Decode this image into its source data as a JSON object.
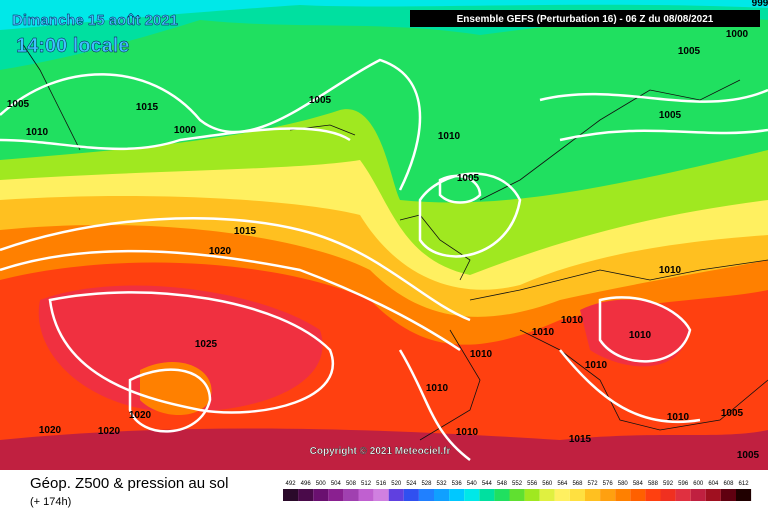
{
  "header": {
    "date": "Dimanche 15 août 2021",
    "time": "14:00 locale",
    "run": "Ensemble GEFS  (Perturbation 16)  -  06 Z du 08/08/2021"
  },
  "isobar_labels": [
    "999",
    "1005",
    "1015",
    "1010",
    "1000",
    "1005",
    "1010",
    "1005",
    "1005",
    "1000",
    "1005",
    "1015",
    "1020",
    "1010",
    "1025",
    "1010",
    "1010",
    "1010",
    "1010",
    "1010",
    "1010",
    "1020",
    "1020",
    "1020",
    "1010",
    "1015",
    "1010",
    "1005",
    "1005"
  ],
  "copyright": "Copyright © 2021 Meteociel.fr",
  "footer": {
    "title": "Géop. Z500 & pression au sol",
    "subtitle": "(+ 174h)"
  },
  "scale": [
    {
      "label": 492,
      "color": "#2a0a2a"
    },
    {
      "label": 496,
      "color": "#4a0a4a"
    },
    {
      "label": 500,
      "color": "#6a1070"
    },
    {
      "label": 504,
      "color": "#8a2090"
    },
    {
      "label": 508,
      "color": "#a040b0"
    },
    {
      "label": 512,
      "color": "#c060d0"
    },
    {
      "label": 516,
      "color": "#d080e0"
    },
    {
      "label": 520,
      "color": "#6040e0"
    },
    {
      "label": 524,
      "color": "#3050f0"
    },
    {
      "label": 528,
      "color": "#2080ff"
    },
    {
      "label": 532,
      "color": "#10a0ff"
    },
    {
      "label": 536,
      "color": "#00c8ff"
    },
    {
      "label": 540,
      "color": "#00e8e8"
    },
    {
      "label": 544,
      "color": "#00e0a0"
    },
    {
      "label": 548,
      "color": "#20e060"
    },
    {
      "label": 552,
      "color": "#60e030"
    },
    {
      "label": 556,
      "color": "#a0e820"
    },
    {
      "label": 560,
      "color": "#e0f040"
    },
    {
      "label": 564,
      "color": "#fff060"
    },
    {
      "label": 568,
      "color": "#ffe040"
    },
    {
      "label": 572,
      "color": "#ffc020"
    },
    {
      "label": 576,
      "color": "#ffa010"
    },
    {
      "label": 580,
      "color": "#ff8000"
    },
    {
      "label": 584,
      "color": "#ff6000"
    },
    {
      "label": 588,
      "color": "#ff4010"
    },
    {
      "label": 592,
      "color": "#f03020"
    },
    {
      "label": 596,
      "color": "#e03040"
    },
    {
      "label": 600,
      "color": "#c02040"
    },
    {
      "label": 604,
      "color": "#a01020"
    },
    {
      "label": 608,
      "color": "#600010"
    },
    {
      "label": 612,
      "color": "#200000"
    }
  ]
}
